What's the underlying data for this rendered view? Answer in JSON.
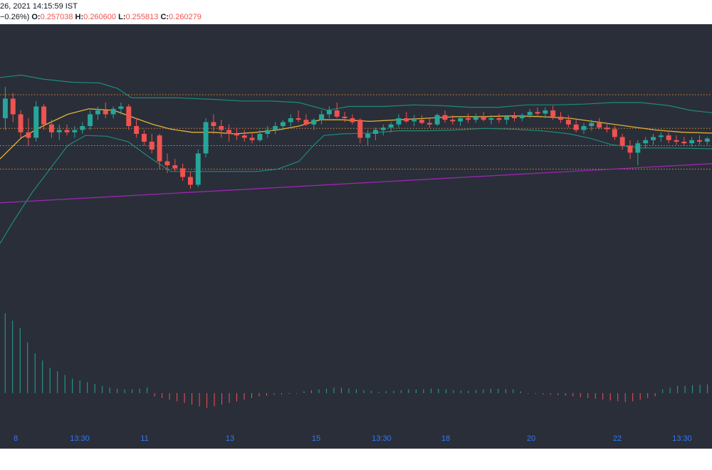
{
  "header": {
    "date_line": "26, 2021 14:15:59 IST",
    "change": "−0.26%)",
    "o_label": "O:",
    "o_value": "0.257038",
    "h_label": "H:",
    "h_value": "0.260600",
    "l_label": "L:",
    "l_value": "0.255813",
    "c_label": "C:",
    "c_value": "0.260279"
  },
  "colors": {
    "background": "#2a2e39",
    "up": "#26a69a",
    "down": "#ef5350",
    "bb_band": "#1e8a7a",
    "bb_basis": "#e0b33a",
    "long_ma": "#9c27b0",
    "level_line": "#d98a3a",
    "axis_text": "#3179f5"
  },
  "chart_data": [
    {
      "type": "candlestick",
      "x_ticks": [
        "8",
        "13:30",
        "11",
        "13",
        "15",
        "13:30",
        "18",
        "20",
        "22",
        "13:30"
      ],
      "ylim": [
        0.236,
        0.272
      ],
      "horizontal_levels": [
        0.263,
        0.2587,
        0.2565,
        0.2535
      ],
      "candles": [
        [
          0.26,
          0.264,
          0.2585,
          0.2625
        ],
        [
          0.2625,
          0.2632,
          0.2595,
          0.2605
        ],
        [
          0.2605,
          0.261,
          0.2575,
          0.2582
        ],
        [
          0.2582,
          0.26,
          0.2565,
          0.2575
        ],
        [
          0.2575,
          0.2622,
          0.257,
          0.2615
        ],
        [
          0.2615,
          0.2618,
          0.2585,
          0.2592
        ],
        [
          0.2592,
          0.2598,
          0.2575,
          0.2582
        ],
        [
          0.2582,
          0.2592,
          0.2572,
          0.2585
        ],
        [
          0.2585,
          0.2592,
          0.2578,
          0.2582
        ],
        [
          0.2582,
          0.259,
          0.2575,
          0.2585
        ],
        [
          0.2585,
          0.2595,
          0.258,
          0.259
        ],
        [
          0.259,
          0.261,
          0.2585,
          0.2605
        ],
        [
          0.2605,
          0.2615,
          0.2598,
          0.261
        ],
        [
          0.261,
          0.262,
          0.26,
          0.2605
        ],
        [
          0.2605,
          0.2615,
          0.26,
          0.2612
        ],
        [
          0.2612,
          0.262,
          0.2605,
          0.2615
        ],
        [
          0.2615,
          0.2618,
          0.2585,
          0.259
        ],
        [
          0.259,
          0.26,
          0.2575,
          0.258
        ],
        [
          0.258,
          0.2585,
          0.2565,
          0.257
        ],
        [
          0.257,
          0.258,
          0.2555,
          0.256
        ],
        [
          0.2578,
          0.258,
          0.2535,
          0.2545
        ],
        [
          0.2545,
          0.2555,
          0.253,
          0.254
        ],
        [
          0.254,
          0.2548,
          0.2532,
          0.2536
        ],
        [
          0.2536,
          0.2542,
          0.252,
          0.2525
        ],
        [
          0.2525,
          0.2532,
          0.251,
          0.2515
        ],
        [
          0.2515,
          0.256,
          0.2512,
          0.2555
        ],
        [
          0.2555,
          0.26,
          0.255,
          0.2595
        ],
        [
          0.2595,
          0.2605,
          0.258,
          0.259
        ],
        [
          0.259,
          0.2598,
          0.2575,
          0.2585
        ],
        [
          0.2585,
          0.2592,
          0.257,
          0.258
        ],
        [
          0.258,
          0.2588,
          0.2572,
          0.2578
        ],
        [
          0.2578,
          0.2585,
          0.257,
          0.2575
        ],
        [
          0.2575,
          0.2582,
          0.2568,
          0.2572
        ],
        [
          0.2572,
          0.2585,
          0.257,
          0.258
        ],
        [
          0.258,
          0.259,
          0.2575,
          0.2585
        ],
        [
          0.2585,
          0.2595,
          0.258,
          0.259
        ],
        [
          0.259,
          0.2598,
          0.2585,
          0.2595
        ],
        [
          0.2595,
          0.2605,
          0.259,
          0.26
        ],
        [
          0.26,
          0.261,
          0.2595,
          0.2598
        ],
        [
          0.2598,
          0.2605,
          0.259,
          0.2592
        ],
        [
          0.2592,
          0.26,
          0.2585,
          0.2598
        ],
        [
          0.2598,
          0.261,
          0.2592,
          0.2605
        ],
        [
          0.2605,
          0.2615,
          0.26,
          0.261
        ],
        [
          0.261,
          0.262,
          0.26,
          0.2602
        ],
        [
          0.2602,
          0.2608,
          0.2595,
          0.26
        ],
        [
          0.26,
          0.2605,
          0.2592,
          0.2595
        ],
        [
          0.2598,
          0.26,
          0.2568,
          0.2575
        ],
        [
          0.2575,
          0.2585,
          0.2565,
          0.258
        ],
        [
          0.258,
          0.2588,
          0.2572,
          0.2585
        ],
        [
          0.2585,
          0.2592,
          0.2578,
          0.2588
        ],
        [
          0.2588,
          0.2595,
          0.2582,
          0.2592
        ],
        [
          0.2592,
          0.2605,
          0.2588,
          0.26
        ],
        [
          0.26,
          0.2608,
          0.2594,
          0.2596
        ],
        [
          0.2596,
          0.2604,
          0.259,
          0.2598
        ],
        [
          0.2598,
          0.2604,
          0.2592,
          0.2594
        ],
        [
          0.2594,
          0.26,
          0.2588,
          0.2592
        ],
        [
          0.2592,
          0.2606,
          0.259,
          0.2604
        ],
        [
          0.2604,
          0.261,
          0.2594,
          0.2598
        ],
        [
          0.2598,
          0.2604,
          0.2592,
          0.2596
        ],
        [
          0.2596,
          0.2602,
          0.259,
          0.26
        ],
        [
          0.26,
          0.2606,
          0.2594,
          0.2598
        ],
        [
          0.2598,
          0.2606,
          0.2594,
          0.2602
        ],
        [
          0.2602,
          0.2608,
          0.2596,
          0.2598
        ],
        [
          0.2598,
          0.2604,
          0.2592,
          0.26
        ],
        [
          0.26,
          0.2606,
          0.2594,
          0.2598
        ],
        [
          0.2598,
          0.2604,
          0.2592,
          0.2602
        ],
        [
          0.2602,
          0.2608,
          0.2596,
          0.26
        ],
        [
          0.26,
          0.2606,
          0.2596,
          0.2604
        ],
        [
          0.2604,
          0.2612,
          0.26,
          0.2608
        ],
        [
          0.2608,
          0.2614,
          0.2602,
          0.2606
        ],
        [
          0.2606,
          0.2614,
          0.26,
          0.261
        ],
        [
          0.261,
          0.2616,
          0.2598,
          0.2602
        ],
        [
          0.2602,
          0.2608,
          0.2594,
          0.2598
        ],
        [
          0.2598,
          0.2604,
          0.2588,
          0.2592
        ],
        [
          0.2592,
          0.2598,
          0.2582,
          0.2585
        ],
        [
          0.2585,
          0.2594,
          0.258,
          0.259
        ],
        [
          0.259,
          0.2598,
          0.2584,
          0.2594
        ],
        [
          0.2594,
          0.26,
          0.2586,
          0.2588
        ],
        [
          0.2588,
          0.2594,
          0.2582,
          0.2586
        ],
        [
          0.2586,
          0.259,
          0.2572,
          0.2576
        ],
        [
          0.2576,
          0.258,
          0.256,
          0.2565
        ],
        [
          0.2565,
          0.2572,
          0.2548,
          0.2556
        ],
        [
          0.2556,
          0.2572,
          0.254,
          0.2568
        ],
        [
          0.2568,
          0.2576,
          0.2562,
          0.2572
        ],
        [
          0.2572,
          0.258,
          0.2566,
          0.2576
        ],
        [
          0.2576,
          0.2582,
          0.257,
          0.2578
        ],
        [
          0.2578,
          0.2582,
          0.2568,
          0.2572
        ],
        [
          0.2572,
          0.2578,
          0.2566,
          0.257
        ],
        [
          0.257,
          0.2576,
          0.2564,
          0.2568
        ],
        [
          0.2568,
          0.2576,
          0.2564,
          0.2572
        ],
        [
          0.2572,
          0.2578,
          0.2566,
          0.257
        ],
        [
          0.257,
          0.2576,
          0.2566,
          0.2574
        ]
      ],
      "bb_upper": [
        [
          0,
          0.2652
        ],
        [
          30,
          0.2655
        ],
        [
          60,
          0.265
        ],
        [
          100,
          0.2646
        ],
        [
          140,
          0.2645
        ],
        [
          165,
          0.2638
        ],
        [
          185,
          0.2626
        ],
        [
          220,
          0.2626
        ],
        [
          250,
          0.2626
        ],
        [
          300,
          0.2624
        ],
        [
          340,
          0.2622
        ],
        [
          380,
          0.2622
        ],
        [
          420,
          0.262
        ],
        [
          460,
          0.261
        ],
        [
          490,
          0.2615
        ],
        [
          540,
          0.2615
        ],
        [
          580,
          0.2617
        ],
        [
          620,
          0.2616
        ],
        [
          660,
          0.2614
        ],
        [
          700,
          0.2614
        ],
        [
          740,
          0.2617
        ],
        [
          780,
          0.2617
        ],
        [
          820,
          0.2618
        ],
        [
          860,
          0.262
        ],
        [
          900,
          0.262
        ],
        [
          940,
          0.2616
        ],
        [
          970,
          0.261
        ],
        [
          1000,
          0.2607
        ]
      ],
      "bb_basis": [
        [
          0,
          0.2548
        ],
        [
          30,
          0.2575
        ],
        [
          60,
          0.259
        ],
        [
          95,
          0.2605
        ],
        [
          125,
          0.2612
        ],
        [
          160,
          0.261
        ],
        [
          190,
          0.26
        ],
        [
          215,
          0.2592
        ],
        [
          240,
          0.2586
        ],
        [
          270,
          0.2582
        ],
        [
          300,
          0.2582
        ],
        [
          330,
          0.258
        ],
        [
          360,
          0.2582
        ],
        [
          390,
          0.2585
        ],
        [
          420,
          0.259
        ],
        [
          450,
          0.2598
        ],
        [
          480,
          0.2598
        ],
        [
          520,
          0.2596
        ],
        [
          560,
          0.2598
        ],
        [
          600,
          0.26
        ],
        [
          640,
          0.2602
        ],
        [
          680,
          0.2602
        ],
        [
          720,
          0.2603
        ],
        [
          760,
          0.2602
        ],
        [
          800,
          0.26
        ],
        [
          840,
          0.2595
        ],
        [
          880,
          0.259
        ],
        [
          920,
          0.2585
        ],
        [
          960,
          0.2582
        ],
        [
          1000,
          0.2581
        ]
      ],
      "bb_lower": [
        [
          0,
          0.244
        ],
        [
          20,
          0.247
        ],
        [
          45,
          0.2505
        ],
        [
          70,
          0.2535
        ],
        [
          95,
          0.2565
        ],
        [
          120,
          0.2578
        ],
        [
          150,
          0.2577
        ],
        [
          180,
          0.257
        ],
        [
          210,
          0.255
        ],
        [
          240,
          0.2532
        ],
        [
          270,
          0.2532
        ],
        [
          320,
          0.2532
        ],
        [
          360,
          0.2532
        ],
        [
          390,
          0.2535
        ],
        [
          420,
          0.2545
        ],
        [
          440,
          0.2565
        ],
        [
          455,
          0.2578
        ],
        [
          480,
          0.258
        ],
        [
          520,
          0.2581
        ],
        [
          560,
          0.2584
        ],
        [
          600,
          0.2584
        ],
        [
          640,
          0.2585
        ],
        [
          680,
          0.2587
        ],
        [
          720,
          0.2586
        ],
        [
          760,
          0.2584
        ],
        [
          800,
          0.258
        ],
        [
          830,
          0.2574
        ],
        [
          860,
          0.2566
        ],
        [
          900,
          0.2562
        ],
        [
          940,
          0.2562
        ],
        [
          1000,
          0.2561
        ]
      ],
      "long_ma": [
        [
          0,
          0.2492
        ],
        [
          1000,
          0.2542
        ]
      ]
    },
    {
      "type": "histogram",
      "values": [
        22,
        20,
        18,
        14,
        11,
        9,
        7,
        6,
        5,
        4,
        3.5,
        3,
        2.5,
        2,
        1.5,
        1.2,
        1,
        1,
        1.2,
        1.5,
        -2,
        -3,
        -4,
        -5,
        -6,
        -7,
        -8,
        -9,
        -8,
        -7,
        -6,
        -5,
        -4,
        -3,
        -2,
        -1.5,
        -1,
        -0.8,
        -0.5,
        -0.3,
        0.5,
        0.8,
        1,
        1.2,
        1.5,
        1.5,
        1.3,
        1,
        0.8,
        0.6,
        0.3,
        0.5,
        0.6,
        0.8,
        1,
        1,
        1.1,
        1.2,
        1.2,
        1,
        0.8,
        0.7,
        0.6,
        0.8,
        1,
        1.2,
        1.2,
        1.1,
        1,
        0.5,
        -0.3,
        -0.5,
        -0.8,
        -1,
        -1.3,
        -1.5,
        -2,
        -2.5,
        -3,
        -3.5,
        -4,
        -4.5,
        -5,
        -5.5,
        -5,
        -4,
        -3,
        -2,
        1,
        1.5,
        2,
        2,
        2.2,
        2.3,
        2.4
      ],
      "ylim": [
        -10,
        24
      ]
    }
  ]
}
